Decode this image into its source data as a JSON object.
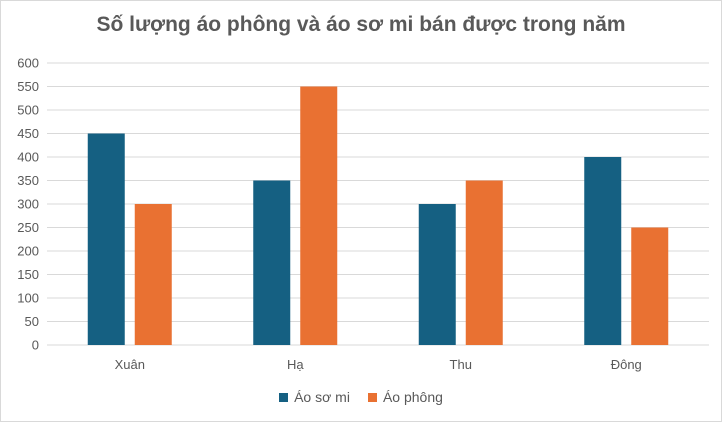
{
  "chart_data": {
    "type": "bar",
    "title": "Số lượng áo phông và áo sơ mi bán được trong năm",
    "categories": [
      "Xuân",
      "Hạ",
      "Thu",
      "Đông"
    ],
    "series": [
      {
        "name": "Áo sơ mi",
        "color": "#156082",
        "values": [
          450,
          350,
          300,
          400
        ]
      },
      {
        "name": "Áo phông",
        "color": "#E97132",
        "values": [
          300,
          550,
          350,
          250
        ]
      }
    ],
    "ylim": [
      0,
      600
    ],
    "yticks": [
      0,
      50,
      100,
      150,
      200,
      250,
      300,
      350,
      400,
      450,
      500,
      550,
      600
    ],
    "grid": true,
    "legend": "bottom"
  }
}
